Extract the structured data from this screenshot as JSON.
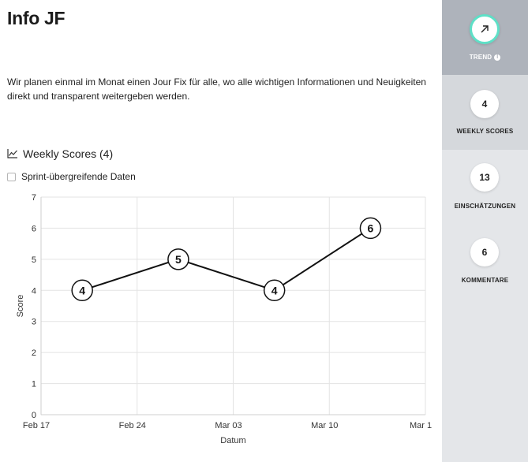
{
  "page": {
    "title": "Info JF",
    "description": "Wir planen einmal im Monat einen Jour Fix für alle, wo alle wichtigen Informationen und Neuigkeiten direkt und transparent weitergeben werden."
  },
  "section": {
    "icon": "line-chart-icon",
    "title": "Weekly Scores (4)"
  },
  "filter": {
    "checkbox_label": "Sprint-übergreifende Daten",
    "checked": false
  },
  "sidebar": {
    "trend": {
      "icon": "arrow-up-right-icon",
      "label": "TREND",
      "info_icon": "info-icon",
      "info_glyph": "i",
      "accent_color": "#5ee0c7"
    },
    "weekly_scores": {
      "value": "4",
      "label": "WEEKLY SCORES"
    },
    "einschaetzungen": {
      "value": "13",
      "label": "EINSCHÄTZUNGEN"
    },
    "kommentare": {
      "value": "6",
      "label": "KOMMENTARE"
    }
  },
  "chart_data": {
    "type": "line",
    "xlabel": "Datum",
    "ylabel": "Score",
    "ylim": [
      0,
      7
    ],
    "yticks": [
      "0",
      "1",
      "2",
      "3",
      "4",
      "5",
      "6",
      "7"
    ],
    "xticks": [
      "Feb 17",
      "Feb 24",
      "Mar 03",
      "Mar 10",
      "Mar 1"
    ],
    "xlim": [
      "2025-02-17",
      "2025-03-17"
    ],
    "grid": true,
    "points": [
      {
        "x": "2025-02-20",
        "y": 4,
        "label": "4"
      },
      {
        "x": "2025-02-27",
        "y": 5,
        "label": "5"
      },
      {
        "x": "2025-03-06",
        "y": 4,
        "label": "4"
      },
      {
        "x": "2025-03-13",
        "y": 6,
        "label": "6"
      }
    ]
  }
}
